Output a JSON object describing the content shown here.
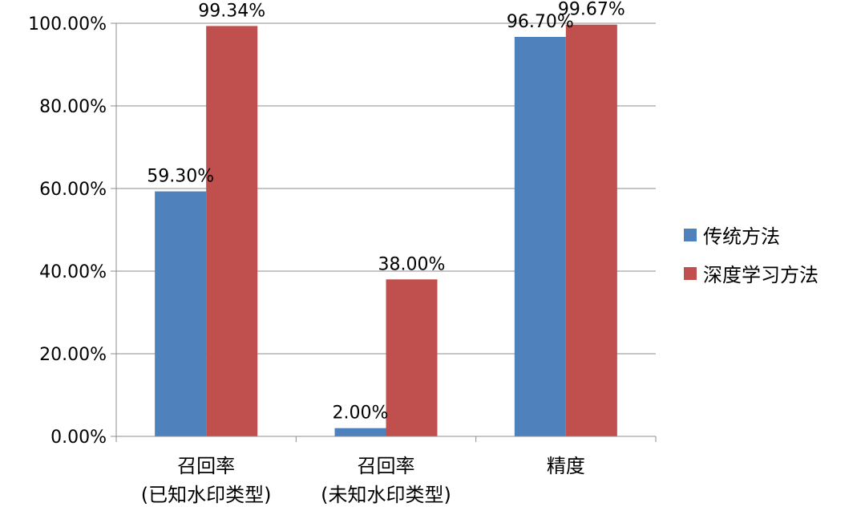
{
  "chart_data": {
    "type": "bar",
    "title": "",
    "xlabel": "",
    "ylabel": "",
    "ylim": [
      0,
      100
    ],
    "y_ticks": [
      "0.00%",
      "20.00%",
      "40.00%",
      "60.00%",
      "80.00%",
      "100.00%"
    ],
    "y_tick_values": [
      0,
      20,
      40,
      60,
      80,
      100
    ],
    "grid": true,
    "legend_position": "right",
    "categories": [
      [
        "召回率",
        "(已知水印类型)"
      ],
      [
        "召回率",
        "(未知水印类型)"
      ],
      [
        "精度"
      ]
    ],
    "series": [
      {
        "name": "传统方法",
        "color": "#4F81BD",
        "values": [
          59.3,
          2.0,
          96.7
        ],
        "labels": [
          "59.30%",
          "2.00%",
          "96.70%"
        ]
      },
      {
        "name": "深度学习方法",
        "color": "#C0504D",
        "values": [
          99.34,
          38.0,
          99.67
        ],
        "labels": [
          "99.34%",
          "38.00%",
          "99.67%"
        ]
      }
    ]
  }
}
